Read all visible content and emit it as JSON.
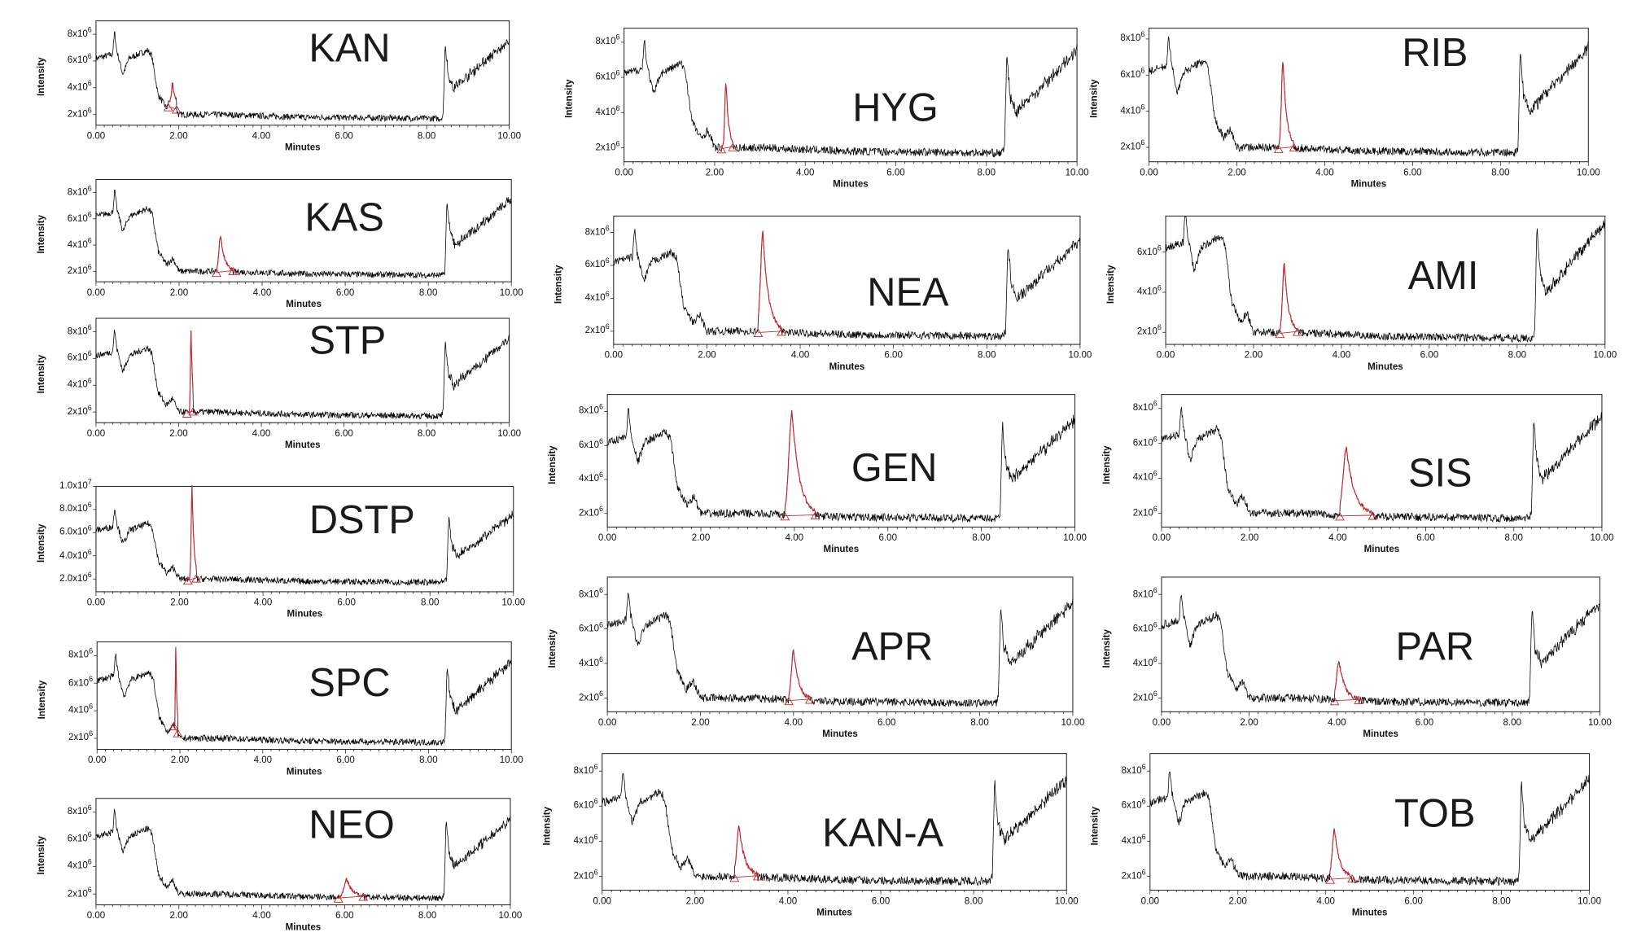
{
  "chart_data": {
    "type": "line",
    "xlabel": "Minutes",
    "ylabel": "Intensity",
    "xlim": [
      0,
      10
    ],
    "xticks": [
      "0.00",
      "2.00",
      "4.00",
      "6.00",
      "8.00",
      "10.00"
    ],
    "colors": {
      "trace": "#000000",
      "peak": "#c0282d"
    },
    "baseline_profile": [
      [
        0,
        6200000.0
      ],
      [
        0.4,
        6500000.0
      ],
      [
        0.45,
        8200000.0
      ],
      [
        0.5,
        6800000.0
      ],
      [
        0.65,
        5000000.0
      ],
      [
        0.8,
        6200000.0
      ],
      [
        1.25,
        6800000.0
      ],
      [
        1.35,
        6400000.0
      ],
      [
        1.5,
        3500000.0
      ],
      [
        1.7,
        2500000.0
      ],
      [
        1.85,
        3000000.0
      ],
      [
        2.0,
        2000000.0
      ],
      [
        3.0,
        2000000.0
      ],
      [
        5.0,
        1800000.0
      ],
      [
        8.35,
        1700000.0
      ],
      [
        8.4,
        2000000.0
      ],
      [
        8.45,
        7400000.0
      ],
      [
        8.52,
        5000000.0
      ],
      [
        8.65,
        4000000.0
      ],
      [
        10.0,
        7500000.0
      ]
    ],
    "charts": [
      {
        "label": "KAN",
        "ylim": [
          1200000.0,
          9000000.0
        ],
        "yticks": [
          {
            "v": 2000000.0,
            "m": "2x10",
            "e": "6"
          },
          {
            "v": 4000000.0,
            "m": "4x10",
            "e": "6"
          },
          {
            "v": 6000000.0,
            "m": "6x10",
            "e": "6"
          },
          {
            "v": 8000000.0,
            "m": "8x10",
            "e": "6"
          }
        ],
        "peak": {
          "rt": 1.85,
          "height": 4400000.0,
          "start": 1.75,
          "end": 1.95
        }
      },
      {
        "label": "KAS",
        "ylim": [
          1200000.0,
          9000000.0
        ],
        "yticks": [
          {
            "v": 2000000.0,
            "m": "2x10",
            "e": "6"
          },
          {
            "v": 4000000.0,
            "m": "4x10",
            "e": "6"
          },
          {
            "v": 6000000.0,
            "m": "6x10",
            "e": "6"
          },
          {
            "v": 8000000.0,
            "m": "8x10",
            "e": "6"
          }
        ],
        "peak": {
          "rt": 3.0,
          "height": 4700000.0,
          "start": 2.9,
          "end": 3.3
        }
      },
      {
        "label": "STP",
        "ylim": [
          1200000.0,
          9000000.0
        ],
        "yticks": [
          {
            "v": 2000000.0,
            "m": "2x10",
            "e": "6"
          },
          {
            "v": 4000000.0,
            "m": "4x10",
            "e": "6"
          },
          {
            "v": 6000000.0,
            "m": "6x10",
            "e": "6"
          },
          {
            "v": 8000000.0,
            "m": "8x10",
            "e": "6"
          }
        ],
        "peak": {
          "rt": 2.3,
          "height": 8000000.0,
          "start": 2.2,
          "end": 2.35
        }
      },
      {
        "label": "DSTP",
        "ylim": [
          900000.0,
          10000000.0
        ],
        "yticks": [
          {
            "v": 2000000.0,
            "m": "2.0x10",
            "e": "6"
          },
          {
            "v": 4000000.0,
            "m": "4.0x10",
            "e": "6"
          },
          {
            "v": 6000000.0,
            "m": "6.0x10",
            "e": "6"
          },
          {
            "v": 8000000.0,
            "m": "8.0x10",
            "e": "6"
          },
          {
            "v": 10000000.0,
            "m": "1.0x10",
            "e": "7"
          }
        ],
        "peak": {
          "rt": 2.3,
          "height": 10000000.0,
          "start": 2.2,
          "end": 2.4
        }
      },
      {
        "label": "SPC",
        "ylim": [
          1200000.0,
          9000000.0
        ],
        "yticks": [
          {
            "v": 2000000.0,
            "m": "2x10",
            "e": "6"
          },
          {
            "v": 4000000.0,
            "m": "4x10",
            "e": "6"
          },
          {
            "v": 6000000.0,
            "m": "6x10",
            "e": "6"
          },
          {
            "v": 8000000.0,
            "m": "8x10",
            "e": "6"
          }
        ],
        "peak": {
          "rt": 1.9,
          "height": 8700000.0,
          "start": 1.85,
          "end": 1.95
        }
      },
      {
        "label": "NEO",
        "ylim": [
          1200000.0,
          9000000.0
        ],
        "yticks": [
          {
            "v": 2000000.0,
            "m": "2x10",
            "e": "6"
          },
          {
            "v": 4000000.0,
            "m": "4x10",
            "e": "6"
          },
          {
            "v": 6000000.0,
            "m": "6x10",
            "e": "6"
          },
          {
            "v": 8000000.0,
            "m": "8x10",
            "e": "6"
          }
        ],
        "peak": {
          "rt": 6.05,
          "height": 3100000.0,
          "start": 5.85,
          "end": 6.45
        }
      },
      {
        "label": "HYG",
        "ylim": [
          1200000.0,
          8800000.0
        ],
        "yticks": [
          {
            "v": 2000000.0,
            "m": "2x10",
            "e": "6"
          },
          {
            "v": 4000000.0,
            "m": "4x10",
            "e": "6"
          },
          {
            "v": 6000000.0,
            "m": "6x10",
            "e": "6"
          },
          {
            "v": 8000000.0,
            "m": "8x10",
            "e": "6"
          }
        ],
        "peak": {
          "rt": 2.25,
          "height": 5800000.0,
          "start": 2.15,
          "end": 2.4
        }
      },
      {
        "label": "NEA",
        "ylim": [
          1200000.0,
          9000000.0
        ],
        "yticks": [
          {
            "v": 2000000.0,
            "m": "2x10",
            "e": "6"
          },
          {
            "v": 4000000.0,
            "m": "4x10",
            "e": "6"
          },
          {
            "v": 6000000.0,
            "m": "6x10",
            "e": "6"
          },
          {
            "v": 8000000.0,
            "m": "8x10",
            "e": "6"
          }
        ],
        "peak": {
          "rt": 3.2,
          "height": 8000000.0,
          "start": 3.1,
          "end": 3.6
        }
      },
      {
        "label": "GEN",
        "ylim": [
          1200000.0,
          9000000.0
        ],
        "yticks": [
          {
            "v": 2000000.0,
            "m": "2x10",
            "e": "6"
          },
          {
            "v": 4000000.0,
            "m": "4x10",
            "e": "6"
          },
          {
            "v": 6000000.0,
            "m": "6x10",
            "e": "6"
          },
          {
            "v": 8000000.0,
            "m": "8x10",
            "e": "6"
          }
        ],
        "peak": {
          "rt": 3.95,
          "height": 8000000.0,
          "start": 3.8,
          "end": 4.45
        }
      },
      {
        "label": "APR",
        "ylim": [
          1200000.0,
          9000000.0
        ],
        "yticks": [
          {
            "v": 2000000.0,
            "m": "2x10",
            "e": "6"
          },
          {
            "v": 4000000.0,
            "m": "4x10",
            "e": "6"
          },
          {
            "v": 6000000.0,
            "m": "6x10",
            "e": "6"
          },
          {
            "v": 8000000.0,
            "m": "8x10",
            "e": "6"
          }
        ],
        "peak": {
          "rt": 4.0,
          "height": 4800000.0,
          "start": 3.9,
          "end": 4.35
        }
      },
      {
        "label": "KAN-A",
        "ylim": [
          1200000.0,
          9000000.0
        ],
        "yticks": [
          {
            "v": 2000000.0,
            "m": "2x10",
            "e": "6"
          },
          {
            "v": 4000000.0,
            "m": "4x10",
            "e": "6"
          },
          {
            "v": 6000000.0,
            "m": "6x10",
            "e": "6"
          },
          {
            "v": 8000000.0,
            "m": "8x10",
            "e": "6"
          }
        ],
        "peak": {
          "rt": 2.95,
          "height": 4900000.0,
          "start": 2.85,
          "end": 3.35
        }
      },
      {
        "label": "RIB",
        "ylim": [
          1200000.0,
          8600000.0
        ],
        "yticks": [
          {
            "v": 2000000.0,
            "m": "2x10",
            "e": "6"
          },
          {
            "v": 4000000.0,
            "m": "4x10",
            "e": "6"
          },
          {
            "v": 6000000.0,
            "m": "6x10",
            "e": "6"
          },
          {
            "v": 8000000.0,
            "m": "8x10",
            "e": "6"
          }
        ],
        "peak": {
          "rt": 3.05,
          "height": 6800000.0,
          "start": 2.95,
          "end": 3.3
        }
      },
      {
        "label": "AMI",
        "ylim": [
          1400000.0,
          7800000.0
        ],
        "yticks": [
          {
            "v": 2000000.0,
            "m": "2x10",
            "e": "6"
          },
          {
            "v": 4000000.0,
            "m": "4x10",
            "e": "6"
          },
          {
            "v": 6000000.0,
            "m": "6x10",
            "e": "6"
          }
        ],
        "peak": {
          "rt": 2.7,
          "height": 5400000.0,
          "start": 2.6,
          "end": 3.0
        }
      },
      {
        "label": "SIS",
        "ylim": [
          1200000.0,
          8800000.0
        ],
        "yticks": [
          {
            "v": 2000000.0,
            "m": "2x10",
            "e": "6"
          },
          {
            "v": 4000000.0,
            "m": "4x10",
            "e": "6"
          },
          {
            "v": 6000000.0,
            "m": "6x10",
            "e": "6"
          },
          {
            "v": 8000000.0,
            "m": "8x10",
            "e": "6"
          }
        ],
        "peak": {
          "rt": 4.2,
          "height": 5700000.0,
          "start": 4.05,
          "end": 4.8
        }
      },
      {
        "label": "PAR",
        "ylim": [
          1200000.0,
          9000000.0
        ],
        "yticks": [
          {
            "v": 2000000.0,
            "m": "2x10",
            "e": "6"
          },
          {
            "v": 4000000.0,
            "m": "4x10",
            "e": "6"
          },
          {
            "v": 6000000.0,
            "m": "6x10",
            "e": "6"
          },
          {
            "v": 8000000.0,
            "m": "8x10",
            "e": "6"
          }
        ],
        "peak": {
          "rt": 4.05,
          "height": 4100000.0,
          "start": 3.95,
          "end": 4.5
        }
      },
      {
        "label": "TOB",
        "ylim": [
          1200000.0,
          9000000.0
        ],
        "yticks": [
          {
            "v": 2000000.0,
            "m": "2x10",
            "e": "6"
          },
          {
            "v": 4000000.0,
            "m": "4x10",
            "e": "6"
          },
          {
            "v": 6000000.0,
            "m": "6x10",
            "e": "6"
          },
          {
            "v": 8000000.0,
            "m": "8x10",
            "e": "6"
          }
        ],
        "peak": {
          "rt": 4.2,
          "height": 4700000.0,
          "start": 4.1,
          "end": 4.6
        }
      }
    ]
  }
}
